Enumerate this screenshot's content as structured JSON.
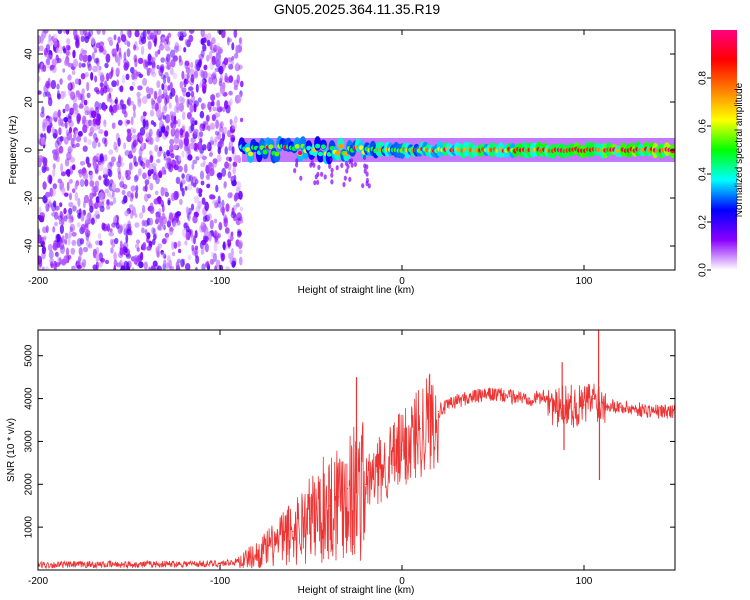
{
  "title": "GN05.2025.364.11.35.R19",
  "chart_data": [
    {
      "type": "heatmap",
      "name": "spectrogram",
      "xlabel": "Height of straight line (km)",
      "ylabel": "Frequency (Hz)",
      "xlim": [
        -200,
        150
      ],
      "ylim": [
        -50,
        50
      ],
      "xticks": [
        -200,
        -100,
        0,
        100
      ],
      "yticks": [
        -40,
        -20,
        0,
        20,
        40
      ],
      "xtick_labels": [
        "-200",
        "-100",
        "0",
        "100"
      ],
      "ytick_labels": [
        "-40",
        "-20",
        "0",
        "20",
        "40"
      ],
      "noise_region_x": [
        -200,
        -88
      ],
      "signal_band": {
        "x_range": [
          -88,
          150
        ],
        "frequency_center_hz": 0,
        "frequency_halfwidth_hz": 4,
        "peak_amplitude": 1.0
      },
      "colorbar": {
        "label": "Normalized spectral amplitude",
        "range": [
          0,
          1
        ],
        "ticks": [
          0.0,
          0.2,
          0.4,
          0.6,
          0.8
        ],
        "tick_labels": [
          "0.0",
          "0.2",
          "0.4",
          "0.6",
          "0.8"
        ],
        "colors": [
          "#ffffff",
          "#8a00ff",
          "#0000ff",
          "#00ffff",
          "#00ff00",
          "#ffff00",
          "#ff7f00",
          "#ff0000",
          "#ff0080"
        ]
      }
    },
    {
      "type": "line",
      "name": "snr",
      "xlabel": "Height of straight line (km)",
      "ylabel": "SNR (10 * v/v)",
      "xlim": [
        -200,
        150
      ],
      "ylim": [
        0,
        5600
      ],
      "xticks": [
        -200,
        -100,
        0,
        100
      ],
      "yticks": [
        1000,
        2000,
        3000,
        4000,
        5000
      ],
      "xtick_labels": [
        "-200",
        "-100",
        "0",
        "100"
      ],
      "ytick_labels": [
        "1000",
        "2000",
        "3000",
        "4000",
        "5000"
      ],
      "color": "#ee3333",
      "series": [
        {
          "name": "SNR",
          "x": [
            -200,
            -150,
            -100,
            -90,
            -80,
            -70,
            -60,
            -50,
            -40,
            -35,
            -30,
            -25,
            -20,
            -10,
            0,
            10,
            20,
            30,
            40,
            50,
            60,
            70,
            80,
            85,
            90,
            95,
            100,
            105,
            110,
            115,
            120,
            130,
            140,
            150
          ],
          "y": [
            120,
            130,
            150,
            200,
            350,
            600,
            900,
            1200,
            1500,
            1700,
            1900,
            1800,
            2000,
            2400,
            2800,
            3300,
            3700,
            3950,
            4050,
            4100,
            4050,
            4000,
            4050,
            3700,
            3900,
            3800,
            3850,
            4000,
            3900,
            3850,
            3800,
            3750,
            3700,
            3700
          ]
        }
      ],
      "spikes": [
        {
          "x": -25,
          "y": 4500
        },
        {
          "x": 88,
          "y": 4850
        },
        {
          "x": 108,
          "y": 5600
        },
        {
          "x": 108.5,
          "y": 2100
        },
        {
          "x": 89,
          "y": 2800
        }
      ]
    }
  ]
}
